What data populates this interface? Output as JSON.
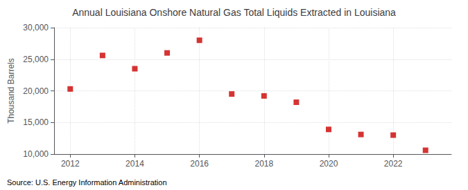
{
  "chart_data": {
    "type": "scatter",
    "title": "Annual Louisiana Onshore Natural Gas Total Liquids Extracted in Louisiana",
    "ylabel": "Thousand Barrels",
    "annotation": "Source: U.S. Energy Information Administration",
    "x": [
      2012,
      2013,
      2014,
      2015,
      2016,
      2017,
      2018,
      2019,
      2020,
      2021,
      2022,
      2023
    ],
    "values": [
      20300,
      25600,
      23500,
      26000,
      28000,
      19500,
      19200,
      18200,
      13900,
      13100,
      13000,
      10600
    ],
    "color": "#cc0000",
    "marker": "square",
    "xlim": [
      2011.5,
      2023.8
    ],
    "xticks": [
      2012,
      2014,
      2016,
      2018,
      2020,
      2022
    ],
    "ylim": [
      10000,
      30000
    ],
    "yticks": [
      {
        "value": 10000,
        "label": "10,000"
      },
      {
        "value": 15000,
        "label": "15,000"
      },
      {
        "value": 20000,
        "label": "20,000"
      },
      {
        "value": 25000,
        "label": "25,000"
      },
      {
        "value": 30000,
        "label": "30,000"
      }
    ],
    "grid": true
  }
}
